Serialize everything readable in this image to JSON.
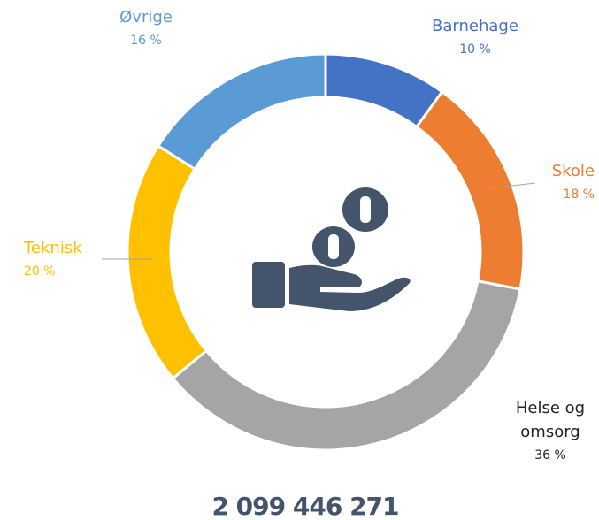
{
  "chart_data": {
    "type": "donut",
    "categories": [
      "Barnehage",
      "Skole",
      "Helse og omsorg",
      "Teknisk",
      "Øvrige"
    ],
    "values": [
      10,
      18,
      36,
      20,
      16
    ],
    "value_labels": [
      "10 %",
      "18 %",
      "36 %",
      "20 %",
      "16 %"
    ],
    "colors": [
      "#4472c4",
      "#ed7d31",
      "#a5a5a5",
      "#ffc000",
      "#5b9bd5"
    ],
    "center_label": "2 099 446 271"
  }
}
